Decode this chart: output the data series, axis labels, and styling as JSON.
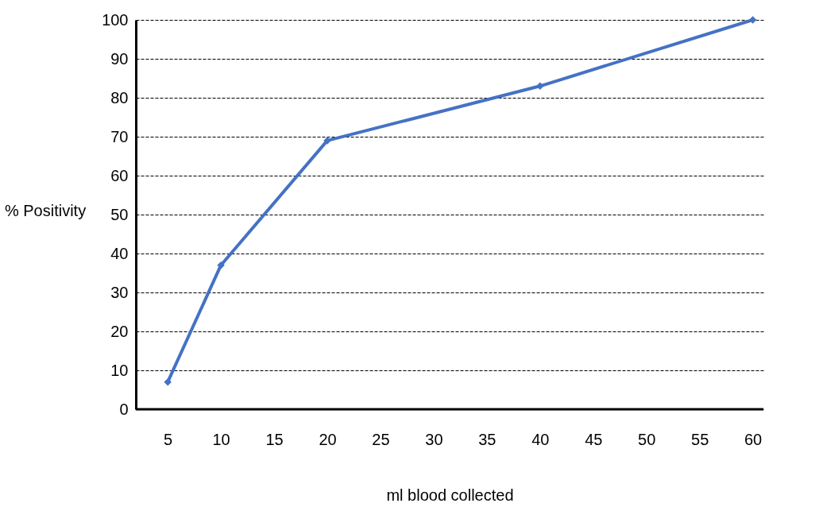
{
  "chart_data": {
    "type": "line",
    "xlabel": "ml blood collected",
    "ylabel": "% Positivity",
    "x": [
      5,
      10,
      20,
      40,
      60
    ],
    "series": [
      {
        "color": "#4472c4",
        "values": [
          7,
          37,
          69,
          83,
          100
        ]
      }
    ],
    "xlim": [
      2,
      61
    ],
    "xticks": [
      5,
      10,
      15,
      20,
      25,
      30,
      35,
      40,
      45,
      50,
      55,
      60
    ],
    "ylim": [
      0,
      100
    ],
    "yticks": [
      0,
      10,
      20,
      30,
      40,
      50,
      60,
      70,
      80,
      90,
      100
    ],
    "grid": "y",
    "marker": "diamond",
    "line_style": "solid"
  }
}
